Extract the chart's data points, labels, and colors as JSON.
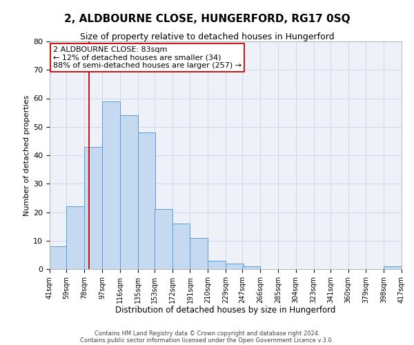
{
  "title": "2, ALDBOURNE CLOSE, HUNGERFORD, RG17 0SQ",
  "subtitle": "Size of property relative to detached houses in Hungerford",
  "xlabel": "Distribution of detached houses by size in Hungerford",
  "ylabel": "Number of detached properties",
  "bar_left_edges": [
    41,
    59,
    78,
    97,
    116,
    135,
    153,
    172,
    191,
    210,
    229,
    247,
    266,
    285,
    304,
    323,
    341,
    360,
    379,
    398
  ],
  "bar_heights": [
    8,
    22,
    43,
    59,
    54,
    48,
    21,
    16,
    11,
    3,
    2,
    1,
    0,
    0,
    0,
    0,
    0,
    0,
    0,
    1
  ],
  "bin_width": 19,
  "xtick_labels": [
    "41sqm",
    "59sqm",
    "78sqm",
    "97sqm",
    "116sqm",
    "135sqm",
    "153sqm",
    "172sqm",
    "191sqm",
    "210sqm",
    "229sqm",
    "247sqm",
    "266sqm",
    "285sqm",
    "304sqm",
    "323sqm",
    "341sqm",
    "360sqm",
    "379sqm",
    "398sqm",
    "417sqm"
  ],
  "xtick_positions": [
    41,
    59,
    78,
    97,
    116,
    135,
    153,
    172,
    191,
    210,
    229,
    247,
    266,
    285,
    304,
    323,
    341,
    360,
    379,
    398,
    417
  ],
  "ylim": [
    0,
    80
  ],
  "yticks": [
    0,
    10,
    20,
    30,
    40,
    50,
    60,
    70,
    80
  ],
  "bar_color": "#c5d9f1",
  "bar_edge_color": "#5b9bd5",
  "vline_x": 83,
  "vline_color": "#cc0000",
  "annotation_text_line1": "2 ALDBOURNE CLOSE: 83sqm",
  "annotation_text_line2": "← 12% of detached houses are smaller (34)",
  "annotation_text_line3": "88% of semi-detached houses are larger (257) →",
  "grid_color": "#c8d4e8",
  "background_color": "#eef2f8",
  "footer_line1": "Contains HM Land Registry data © Crown copyright and database right 2024.",
  "footer_line2": "Contains public sector information licensed under the Open Government Licence v.3.0.",
  "title_fontsize": 11,
  "subtitle_fontsize": 9,
  "xlabel_fontsize": 8.5,
  "ylabel_fontsize": 8,
  "annot_fontsize": 8,
  "xtick_fontsize": 7,
  "ytick_fontsize": 8,
  "footer_fontsize": 6
}
